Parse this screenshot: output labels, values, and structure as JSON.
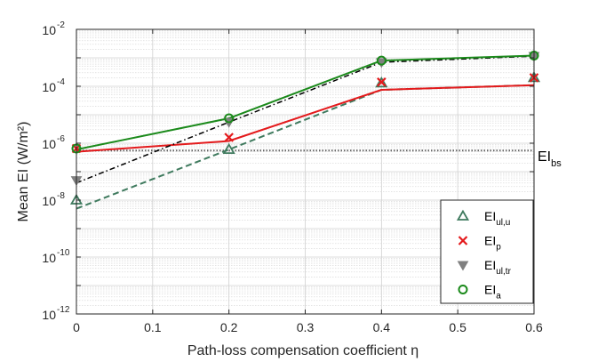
{
  "chart_data": {
    "type": "line",
    "xlabel": "Path-loss compensation coefficient η",
    "ylabel": "Mean EI (W/m²)",
    "xlim": [
      0,
      0.6
    ],
    "ylim_log10": [
      -12,
      -2
    ],
    "yscale": "log",
    "x_ticks": [
      "0",
      "0.1",
      "0.2",
      "0.3",
      "0.4",
      "0.5",
      "0.6"
    ],
    "y_ticks": [
      {
        "base": "10",
        "exp": "-12"
      },
      {
        "base": "10",
        "exp": "-10"
      },
      {
        "base": "10",
        "exp": "-8"
      },
      {
        "base": "10",
        "exp": "-6"
      },
      {
        "base": "10",
        "exp": "-4"
      },
      {
        "base": "10",
        "exp": "-2"
      }
    ],
    "grid": true,
    "legend_position": "bottom-right",
    "x": [
      0,
      0.2,
      0.4,
      0.6
    ],
    "series": [
      {
        "key": "ul_u",
        "legend_main": "EI",
        "legend_sub": "ul,u",
        "color": "#3f7a5e",
        "marker": "triangle-up",
        "line_style": "dashed",
        "marker_values": [
          1e-08,
          6e-07,
          0.00013,
          0.0002
        ],
        "line_values": [
          5e-09,
          6e-07,
          7.5e-05,
          0.00011
        ]
      },
      {
        "key": "p",
        "legend_main": "EI",
        "legend_sub": "p",
        "color": "#e41a1c",
        "marker": "x",
        "line_style": "solid",
        "marker_values": [
          6.5e-07,
          1.6e-06,
          0.00014,
          0.0002
        ],
        "line_values": [
          5e-07,
          1.2e-06,
          7.5e-05,
          0.00011
        ]
      },
      {
        "key": "ul_tr",
        "legend_main": "EI",
        "legend_sub": "ul,tr",
        "color": "#808080",
        "marker": "triangle-down",
        "line_style": "dash-dot",
        "line_color": "#000000",
        "marker_values": [
          5e-08,
          5.5e-06,
          0.0007,
          0.00115
        ],
        "line_values": [
          4e-08,
          5.5e-06,
          0.0007,
          0.00115
        ]
      },
      {
        "key": "a",
        "legend_main": "EI",
        "legend_sub": "a",
        "color": "#1b8a1b",
        "marker": "circle",
        "line_style": "solid",
        "marker_values": [
          6.5e-07,
          7.5e-06,
          0.0008,
          0.0012
        ],
        "line_values": [
          6e-07,
          7.5e-06,
          0.0008,
          0.0012
        ]
      }
    ],
    "reference_line": {
      "label_main": "EI",
      "label_sub": "bs",
      "value": 5.5e-07,
      "color": "#666666",
      "style": "dotted"
    }
  }
}
